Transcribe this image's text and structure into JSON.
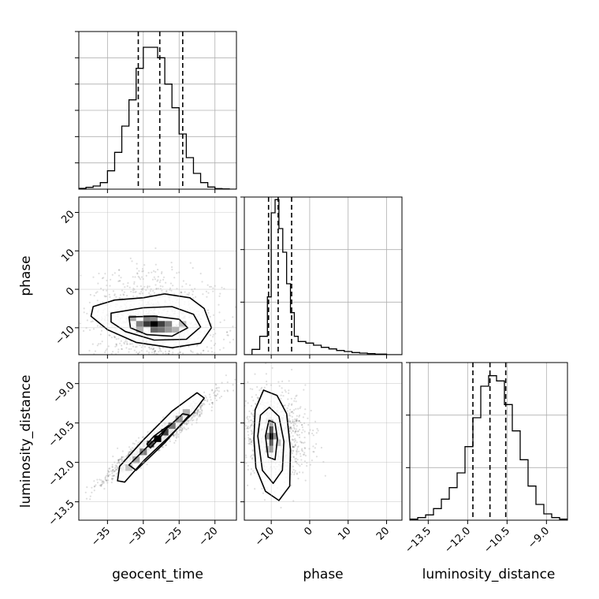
{
  "chart_data": {
    "type": "corner",
    "parameters": [
      "geocent_time",
      "phase",
      "luminosity_distance"
    ],
    "axis_titles": {
      "bottom": [
        "geocent_time",
        "phase",
        "luminosity_distance"
      ],
      "left": [
        "phase",
        "luminosity_distance"
      ]
    },
    "ranges": {
      "geocent_time": [
        -39,
        -17
      ],
      "phase": [
        -17,
        24
      ],
      "luminosity_distance": [
        -14.2,
        -8.2
      ]
    },
    "ticks": {
      "geocent_time": [
        -35,
        -30,
        -25,
        -20
      ],
      "phase": [
        -10,
        0,
        10,
        20
      ],
      "luminosity_distance": [
        -13.5,
        -12.0,
        -10.5,
        -9.0
      ]
    },
    "tick_labels": {
      "geocent_time": [
        "−35",
        "−30",
        "−25",
        "−20"
      ],
      "phase": [
        "−10",
        "0",
        "10",
        "20"
      ],
      "luminosity_distance": [
        "−13.5",
        "−12.0",
        "−10.5",
        "−9.0"
      ]
    },
    "diag_y_ticks": [
      [
        1,
        2,
        3,
        4,
        5,
        6
      ],
      [
        1,
        2,
        3
      ],
      [
        1,
        2,
        3
      ]
    ],
    "diag_y_max": [
      6.0,
      3.0,
      3.0
    ],
    "histograms": {
      "geocent_time": {
        "bins": [
          -39,
          -38,
          -37,
          -36,
          -35,
          -34,
          -33,
          -32,
          -31,
          -30,
          -29,
          -28,
          -27,
          -26,
          -25,
          -24,
          -23,
          -22,
          -21,
          -20,
          -19,
          -18,
          -17
        ],
        "values": [
          0.03,
          0.07,
          0.12,
          0.25,
          0.7,
          1.4,
          2.4,
          3.4,
          4.6,
          5.4,
          5.4,
          5.0,
          4.0,
          3.1,
          2.1,
          1.2,
          0.6,
          0.25,
          0.08,
          0.02,
          0.01,
          0.0
        ]
      },
      "phase": {
        "bins": [
          -17,
          -15,
          -13,
          -11,
          -10,
          -9,
          -8,
          -7,
          -6,
          -5,
          -4,
          -3,
          -1,
          1,
          3,
          5,
          7,
          9,
          11,
          13,
          15,
          17,
          20,
          24
        ],
        "values": [
          0.0,
          0.1,
          0.35,
          1.1,
          2.7,
          2.95,
          2.4,
          1.95,
          1.35,
          0.8,
          0.35,
          0.25,
          0.22,
          0.18,
          0.14,
          0.11,
          0.08,
          0.06,
          0.04,
          0.03,
          0.02,
          0.01,
          0.0
        ]
      },
      "luminosity_distance": {
        "bins": [
          -14.2,
          -13.9,
          -13.6,
          -13.3,
          -13.0,
          -12.7,
          -12.4,
          -12.1,
          -11.8,
          -11.5,
          -11.2,
          -10.9,
          -10.6,
          -10.3,
          -10.0,
          -9.7,
          -9.4,
          -9.1,
          -8.8,
          -8.5,
          -8.2
        ],
        "values": [
          0.02,
          0.05,
          0.1,
          0.22,
          0.4,
          0.62,
          0.9,
          1.4,
          1.95,
          2.55,
          2.75,
          2.65,
          2.2,
          1.7,
          1.15,
          0.65,
          0.3,
          0.12,
          0.05,
          0.02
        ]
      }
    },
    "quantiles": {
      "geocent_time": [
        -30.7,
        -27.7,
        -24.5
      ],
      "phase": [
        -10.7,
        -8.2,
        -4.7
      ],
      "luminosity_distance": [
        -11.8,
        -11.15,
        -10.55
      ]
    },
    "joint": [
      {
        "x": "geocent_time",
        "y": "phase",
        "center": [
          -28.5,
          -9.0
        ],
        "scatter": {
          "sx": 4.5,
          "sy": 6.5,
          "rho": -0.1,
          "n": 1300,
          "seed": 7
        },
        "contours": [
          [
            [
              -37,
              -4.5
            ],
            [
              -34,
              -2.8
            ],
            [
              -30,
              -2.2
            ],
            [
              -27,
              -1.2
            ],
            [
              -23.5,
              -2.2
            ],
            [
              -21.5,
              -5
            ],
            [
              -20.5,
              -10
            ],
            [
              -22,
              -14
            ],
            [
              -26,
              -15.2
            ],
            [
              -31,
              -13.8
            ],
            [
              -35,
              -10.5
            ],
            [
              -37.3,
              -7
            ]
          ],
          [
            [
              -34.5,
              -6.2
            ],
            [
              -30,
              -4.8
            ],
            [
              -26,
              -4.5
            ],
            [
              -23,
              -6.5
            ],
            [
              -22,
              -9.8
            ],
            [
              -24,
              -13
            ],
            [
              -28.5,
              -13.2
            ],
            [
              -32.5,
              -11
            ],
            [
              -34.5,
              -8.5
            ]
          ],
          [
            [
              -32,
              -7.2
            ],
            [
              -28.5,
              -7
            ],
            [
              -25,
              -7.8
            ],
            [
              -23.8,
              -10
            ],
            [
              -26,
              -12.2
            ],
            [
              -29.5,
              -11.8
            ],
            [
              -31.8,
              -10
            ]
          ]
        ],
        "cells": [
          {
            "x": -28.5,
            "y": -9.0,
            "d": 1.0
          },
          {
            "x": -29.5,
            "y": -9.0,
            "d": 0.78
          },
          {
            "x": -27.5,
            "y": -9.0,
            "d": 0.75
          },
          {
            "x": -28.5,
            "y": -10.5,
            "d": 0.6
          },
          {
            "x": -27.5,
            "y": -10.5,
            "d": 0.55
          },
          {
            "x": -29.5,
            "y": -7.5,
            "d": 0.5
          },
          {
            "x": -30.5,
            "y": -9.0,
            "d": 0.5
          },
          {
            "x": -26.5,
            "y": -9.0,
            "d": 0.5
          },
          {
            "x": -26.5,
            "y": -10.5,
            "d": 0.4
          },
          {
            "x": -25.5,
            "y": -10.5,
            "d": 0.3
          },
          {
            "x": -31.5,
            "y": -7.5,
            "d": 0.35
          },
          {
            "x": -28.5,
            "y": -7.5,
            "d": 0.45
          },
          {
            "x": -30.5,
            "y": -10.5,
            "d": 0.3
          },
          {
            "x": -24.5,
            "y": -9.0,
            "d": 0.25
          }
        ],
        "cell_size": [
          1.0,
          1.5
        ]
      },
      {
        "x": "geocent_time",
        "y": "luminosity_distance",
        "center": [
          -28.0,
          -11.1
        ],
        "scatter": {
          "sx": 3.5,
          "sy": 0.75,
          "rho": 0.96,
          "n": 1400,
          "seed": 11
        },
        "contours": [
          [
            [
              -33.6,
              -12.7
            ],
            [
              -33.3,
              -12.15
            ],
            [
              -30,
              -11.15
            ],
            [
              -26,
              -10.05
            ],
            [
              -22.5,
              -9.35
            ],
            [
              -21.5,
              -9.55
            ],
            [
              -23,
              -10.1
            ],
            [
              -26.5,
              -11.05
            ],
            [
              -30,
              -11.95
            ],
            [
              -32.6,
              -12.75
            ]
          ],
          [
            [
              -32,
              -12.1
            ],
            [
              -28.5,
              -11.15
            ],
            [
              -24.5,
              -10.15
            ],
            [
              -23.6,
              -10.2
            ],
            [
              -27,
              -11.25
            ],
            [
              -31,
              -12.3
            ]
          ],
          [
            [
              -29.5,
              -11.3
            ],
            [
              -28.5,
              -11.0
            ],
            [
              -26.5,
              -10.6
            ],
            [
              -27.5,
              -11.0
            ],
            [
              -29,
              -11.45
            ]
          ]
        ],
        "cells": [
          {
            "x": -28.0,
            "y": -11.1,
            "d": 1.0
          },
          {
            "x": -29.0,
            "y": -11.3,
            "d": 0.7
          },
          {
            "x": -27.0,
            "y": -10.85,
            "d": 0.75
          },
          {
            "x": -26.0,
            "y": -10.6,
            "d": 0.55
          },
          {
            "x": -30.0,
            "y": -11.6,
            "d": 0.5
          },
          {
            "x": -25.0,
            "y": -10.35,
            "d": 0.4
          },
          {
            "x": -31.0,
            "y": -11.9,
            "d": 0.35
          },
          {
            "x": -24.0,
            "y": -10.1,
            "d": 0.3
          },
          {
            "x": -32.0,
            "y": -12.2,
            "d": 0.22
          }
        ],
        "cell_size": [
          1.0,
          0.25
        ]
      },
      {
        "x": "phase",
        "y": "luminosity_distance",
        "center": [
          -9.5,
          -11.0
        ],
        "scatter": {
          "sx": 4.5,
          "sy": 0.85,
          "rho": -0.15,
          "n": 1100,
          "seed": 23
        },
        "contours": [
          [
            [
              -14.5,
              -11.1
            ],
            [
              -14.2,
              -10.0
            ],
            [
              -12,
              -9.25
            ],
            [
              -8.5,
              -9.45
            ],
            [
              -6,
              -10.15
            ],
            [
              -5,
              -11.5
            ],
            [
              -5.2,
              -12.9
            ],
            [
              -8,
              -13.45
            ],
            [
              -11.5,
              -13.1
            ],
            [
              -14.0,
              -12.2
            ]
          ],
          [
            [
              -13.5,
              -11.0
            ],
            [
              -12.8,
              -10.2
            ],
            [
              -10.5,
              -9.9
            ],
            [
              -8,
              -10.25
            ],
            [
              -6.7,
              -11.2
            ],
            [
              -7.1,
              -12.3
            ],
            [
              -9.5,
              -12.8
            ],
            [
              -12.3,
              -12.3
            ]
          ],
          [
            [
              -11.5,
              -11.0
            ],
            [
              -10.6,
              -10.4
            ],
            [
              -9,
              -10.5
            ],
            [
              -8.4,
              -11.1
            ],
            [
              -9,
              -11.9
            ],
            [
              -10.8,
              -11.8
            ]
          ]
        ],
        "cells": [
          {
            "x": -10.0,
            "y": -11.0,
            "d": 1.0
          },
          {
            "x": -10.0,
            "y": -10.75,
            "d": 0.75
          },
          {
            "x": -10.0,
            "y": -11.25,
            "d": 0.7
          },
          {
            "x": -11.0,
            "y": -11.0,
            "d": 0.45
          },
          {
            "x": -9.0,
            "y": -11.0,
            "d": 0.45
          },
          {
            "x": -10.0,
            "y": -11.5,
            "d": 0.4
          },
          {
            "x": -10.0,
            "y": -10.5,
            "d": 0.35
          },
          {
            "x": -11.0,
            "y": -11.5,
            "d": 0.25
          },
          {
            "x": -8.0,
            "y": -11.25,
            "d": 0.25
          }
        ],
        "cell_size": [
          1.0,
          0.25
        ]
      }
    ]
  }
}
